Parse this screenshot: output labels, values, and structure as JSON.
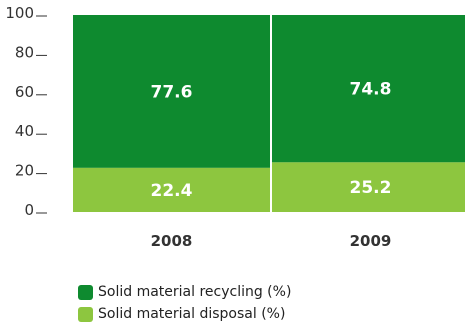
{
  "colors": {
    "recycling": "#0e8a2f",
    "disposal": "#8dc63f",
    "axis": "#333333",
    "value_label": "#ffffff",
    "text": "#333333"
  },
  "chart_data": {
    "type": "bar",
    "stacked": true,
    "categories": [
      "2008",
      "2009"
    ],
    "series": [
      {
        "name": "Solid material disposal (%)",
        "values": [
          22.4,
          25.2
        ]
      },
      {
        "name": "Solid material recycling (%)",
        "values": [
          77.6,
          74.8
        ]
      }
    ],
    "data_labels": {
      "disposal": [
        "22.4",
        "25.2"
      ],
      "recycling": [
        "77.6",
        "74.8"
      ]
    },
    "yticks": [
      "0",
      "20",
      "40",
      "60",
      "80",
      "100"
    ],
    "ylim": [
      0,
      100
    ],
    "title": "",
    "xlabel": "",
    "ylabel": "",
    "grid": false,
    "legend_position": "bottom"
  },
  "legend": {
    "recycling_label": "Solid material recycling (%)",
    "disposal_label": "Solid material disposal (%)"
  }
}
